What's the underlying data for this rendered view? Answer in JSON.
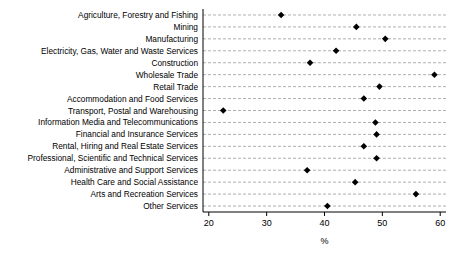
{
  "chart_data": {
    "type": "dot",
    "orientation": "horizontal",
    "categories": [
      "Agriculture, Forestry and Fishing",
      "Mining",
      "Manufacturing",
      "Electricity, Gas, Water and Waste Services",
      "Construction",
      "Wholesale Trade",
      "Retail Trade",
      "Accommodation and Food Services",
      "Transport, Postal and Warehousing",
      "Information Media and Telecommunications",
      "Financial and Insurance Services",
      "Rental, Hiring and Real Estate Services",
      "Professional, Scientific and Technical Services",
      "Administrative and Support Services",
      "Health Care and Social Assistance",
      "Arts and Recreation Services",
      "Other Services"
    ],
    "values": [
      32.5,
      45.5,
      50.5,
      42,
      37.5,
      59,
      49.5,
      46.8,
      22.5,
      48.8,
      49,
      46.8,
      49,
      37,
      45.3,
      55.8,
      40.5
    ],
    "x_label": "%",
    "xlim": [
      19,
      61
    ],
    "xticks": [
      20,
      30,
      40,
      50,
      60
    ],
    "grid": true,
    "color": "#000000",
    "marker": "diamond"
  }
}
